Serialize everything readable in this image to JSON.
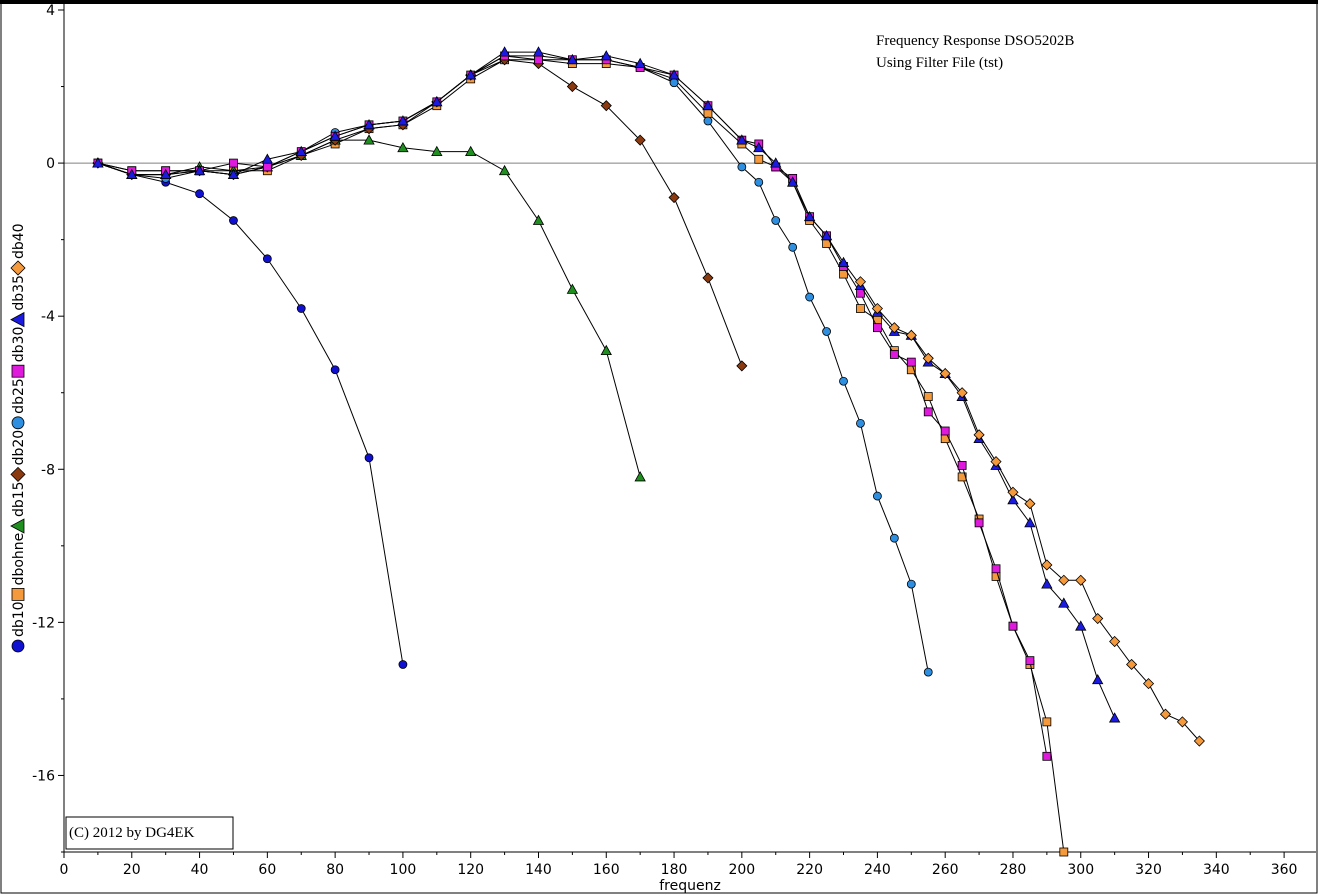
{
  "chart_data": {
    "type": "line",
    "title": "Frequency Response DSO5202B",
    "subtitle": "Using Filter File (tst)",
    "xlabel": "frequenz",
    "ylabel": "",
    "xlim": [
      0,
      370
    ],
    "ylim": [
      -18,
      4
    ],
    "x_ticks": [
      0,
      20,
      40,
      60,
      80,
      100,
      120,
      140,
      160,
      180,
      200,
      220,
      240,
      260,
      280,
      300,
      320,
      340,
      360
    ],
    "y_ticks": [
      -16,
      -12,
      -8,
      -4,
      0,
      4
    ],
    "x_tick_labels": [
      "0",
      "20",
      "40",
      "60",
      "80",
      "100",
      "120",
      "140",
      "160",
      "180",
      "200",
      "220",
      "240",
      "260",
      "280",
      "300",
      "320",
      "340",
      "360"
    ],
    "y_tick_labels": [
      "-16",
      "-12",
      "-8",
      "-4",
      "0",
      "4"
    ],
    "reference_line_y": 0,
    "grid": false,
    "legend_position": "left-vertical",
    "copyright": "(C) 2012 by DG4EK",
    "series": [
      {
        "name": "db10",
        "marker": "circle",
        "color": "#1010d0",
        "x": [
          10,
          20,
          30,
          40,
          50,
          60,
          70,
          80,
          90,
          100
        ],
        "y": [
          0,
          -0.3,
          -0.5,
          -0.8,
          -1.5,
          -2.5,
          -3.8,
          -5.4,
          -7.7,
          -13.1
        ]
      },
      {
        "name": "dbohne",
        "marker": "square",
        "color": "#f59a3c",
        "x": [
          10,
          20,
          30,
          40,
          50,
          60,
          70,
          80,
          90,
          100,
          110,
          120,
          130,
          140,
          150,
          160,
          170,
          180,
          190,
          200,
          205,
          210,
          215,
          220,
          225,
          230,
          235,
          240,
          245,
          250,
          255,
          260,
          265,
          270,
          275,
          280,
          285,
          290,
          295
        ],
        "y": [
          0,
          -0.2,
          -0.2,
          -0.2,
          -0.2,
          -0.2,
          0.2,
          0.5,
          0.9,
          1.0,
          1.5,
          2.2,
          2.7,
          2.7,
          2.6,
          2.6,
          2.5,
          2.2,
          1.3,
          0.5,
          0.1,
          -0.1,
          -0.5,
          -1.5,
          -2.1,
          -2.9,
          -3.8,
          -4.1,
          -4.9,
          -5.4,
          -6.1,
          -7.2,
          -8.2,
          -9.3,
          -10.8,
          -12.1,
          -13.1,
          -14.6,
          -18.0
        ]
      },
      {
        "name": "db15",
        "marker": "triangle",
        "color": "#1f8f1f",
        "x": [
          10,
          20,
          30,
          40,
          50,
          60,
          70,
          80,
          90,
          100,
          110,
          120,
          130,
          140,
          150,
          160,
          170
        ],
        "y": [
          0,
          -0.3,
          -0.3,
          -0.1,
          -0.2,
          -0.1,
          0.2,
          0.6,
          0.6,
          0.4,
          0.3,
          0.3,
          -0.2,
          -1.5,
          -3.3,
          -4.9,
          -8.2
        ]
      },
      {
        "name": "db20",
        "marker": "diamond",
        "color": "#8b3a10",
        "x": [
          10,
          20,
          30,
          40,
          50,
          60,
          70,
          80,
          90,
          100,
          110,
          120,
          130,
          140,
          150,
          160,
          170,
          180,
          190,
          200
        ],
        "y": [
          0,
          -0.3,
          -0.3,
          -0.2,
          -0.3,
          -0.1,
          0.2,
          0.6,
          0.9,
          1.0,
          1.6,
          2.3,
          2.7,
          2.6,
          2.0,
          1.5,
          0.6,
          -0.9,
          -3.0,
          -5.3
        ]
      },
      {
        "name": "db25",
        "marker": "circle",
        "color": "#2e8fe0",
        "x": [
          10,
          20,
          30,
          40,
          50,
          60,
          70,
          80,
          90,
          100,
          110,
          120,
          130,
          140,
          150,
          160,
          170,
          180,
          190,
          200,
          205,
          210,
          215,
          220,
          225,
          230,
          235,
          240,
          245,
          250,
          255
        ],
        "y": [
          0,
          -0.3,
          -0.4,
          -0.2,
          -0.3,
          -0.1,
          0.3,
          0.8,
          1.0,
          1.1,
          1.6,
          2.3,
          2.8,
          2.8,
          2.7,
          2.7,
          2.5,
          2.1,
          1.1,
          -0.1,
          -0.5,
          -1.5,
          -2.2,
          -3.5,
          -4.4,
          -5.7,
          -6.8,
          -8.7,
          -9.8,
          -11.0,
          -13.3
        ]
      },
      {
        "name": "db30",
        "marker": "square",
        "color": "#e01adc",
        "x": [
          10,
          20,
          30,
          40,
          50,
          60,
          70,
          80,
          90,
          100,
          110,
          120,
          130,
          140,
          150,
          160,
          170,
          180,
          190,
          200,
          205,
          210,
          215,
          220,
          225,
          230,
          235,
          240,
          245,
          250,
          255,
          260,
          265,
          270,
          275,
          280,
          285,
          290
        ],
        "y": [
          0,
          -0.2,
          -0.2,
          -0.2,
          0.0,
          -0.1,
          0.3,
          0.7,
          1.0,
          1.1,
          1.6,
          2.3,
          2.8,
          2.7,
          2.7,
          2.7,
          2.5,
          2.3,
          1.5,
          0.6,
          0.5,
          -0.1,
          -0.4,
          -1.4,
          -1.9,
          -2.7,
          -3.4,
          -4.3,
          -5.0,
          -5.2,
          -6.5,
          -7.0,
          -7.9,
          -9.4,
          -10.6,
          -12.1,
          -13.0,
          -15.5
        ]
      },
      {
        "name": "db35",
        "marker": "triangle",
        "color": "#1a1ae0",
        "x": [
          10,
          20,
          30,
          40,
          50,
          60,
          70,
          80,
          90,
          100,
          110,
          120,
          130,
          140,
          150,
          160,
          170,
          180,
          190,
          200,
          205,
          210,
          215,
          220,
          225,
          230,
          235,
          240,
          245,
          250,
          255,
          260,
          265,
          270,
          275,
          280,
          285,
          290,
          295,
          300,
          305,
          310
        ],
        "y": [
          0,
          -0.3,
          -0.3,
          -0.2,
          -0.3,
          0.1,
          0.3,
          0.7,
          1.0,
          1.1,
          1.6,
          2.3,
          2.9,
          2.9,
          2.7,
          2.8,
          2.6,
          2.3,
          1.5,
          0.6,
          0.4,
          0.0,
          -0.5,
          -1.4,
          -1.9,
          -2.6,
          -3.2,
          -3.9,
          -4.4,
          -4.5,
          -5.2,
          -5.5,
          -6.1,
          -7.2,
          -7.9,
          -8.8,
          -9.4,
          -11.0,
          -11.5,
          -12.1,
          -13.5,
          -14.5
        ]
      },
      {
        "name": "db40",
        "marker": "diamond",
        "color": "#f59a3c",
        "x": [
          235,
          240,
          245,
          250,
          255,
          260,
          265,
          270,
          275,
          280,
          285,
          290,
          295,
          300,
          305,
          310,
          315,
          320,
          325,
          330,
          335
        ],
        "y": [
          -3.1,
          -3.8,
          -4.3,
          -4.5,
          -5.1,
          -5.5,
          -6.0,
          -7.1,
          -7.8,
          -8.6,
          -8.9,
          -10.5,
          -10.9,
          -10.9,
          -11.9,
          -12.5,
          -13.1,
          -13.6,
          -14.4,
          -14.6,
          -15.1
        ]
      }
    ],
    "legend_order": [
      "db10",
      "dbohne",
      "db15",
      "db20",
      "db25",
      "db30",
      "db35",
      "db40"
    ]
  }
}
